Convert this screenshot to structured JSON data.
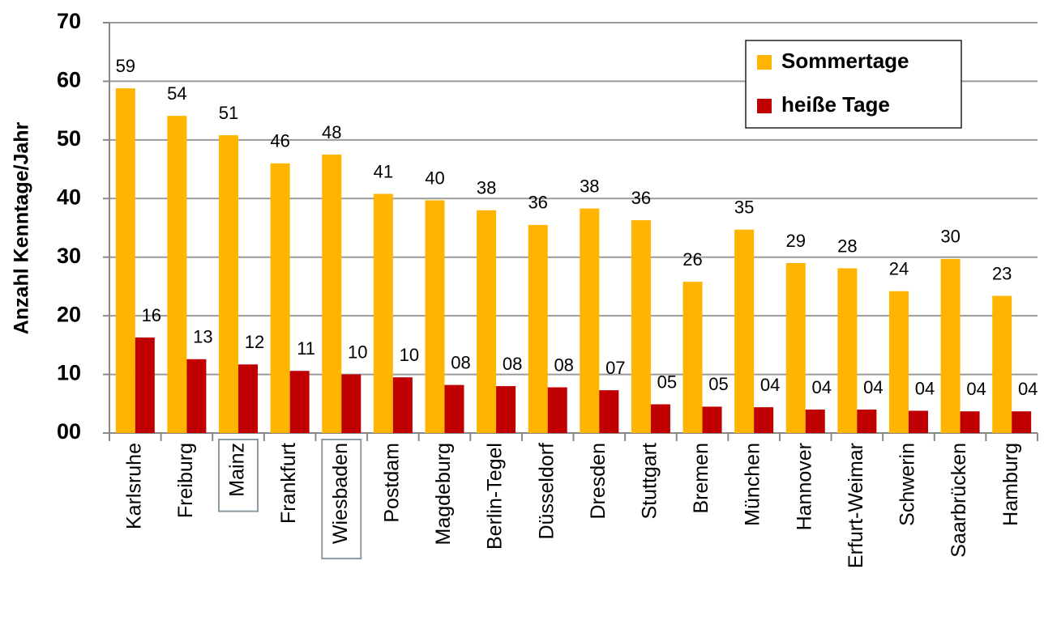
{
  "chart_data": {
    "type": "bar",
    "y_label": "Anzahl Kenntage/Jahr",
    "categories": [
      "Karlsruhe",
      "Freiburg",
      "Mainz",
      "Frankfurt",
      "Wiesbaden",
      "Postdam",
      "Magdeburg",
      "Berlin-Tegel",
      "Düsseldorf",
      "Dresden",
      "Stuttgart",
      "Bremen",
      "München",
      "Hannover",
      "Erfurt-Weimar",
      "Schwerin",
      "Saarbrücken",
      "Hamburg"
    ],
    "series": [
      {
        "name": "Sommertage",
        "color": "#FFB400",
        "values": [
          58.8,
          54.1,
          50.8,
          46,
          47.5,
          40.8,
          39.7,
          38,
          35.5,
          38.3,
          36.3,
          25.8,
          34.7,
          29,
          28.1,
          24.2,
          29.7,
          23.4
        ],
        "value_labels": [
          "59",
          "54",
          "51",
          "46",
          "48",
          "41",
          "40",
          "38",
          "36",
          "38",
          "36",
          "26",
          "35",
          "29",
          "28",
          "24",
          "30",
          "23"
        ]
      },
      {
        "name": "heiße Tage",
        "color": "#C00000",
        "values": [
          16.3,
          12.6,
          11.7,
          10.6,
          10,
          9.5,
          8.2,
          8,
          7.8,
          7.3,
          4.9,
          4.5,
          4.4,
          4,
          4,
          3.8,
          3.7,
          3.7
        ],
        "value_labels": [
          "16",
          "13",
          "12",
          "11",
          "10",
          "10",
          "08",
          "08",
          "08",
          "07",
          "05",
          "05",
          "04",
          "04",
          "04",
          "04",
          "04",
          "04"
        ]
      }
    ],
    "highlighted": [
      2,
      4
    ],
    "ylim": [
      0,
      70
    ],
    "yticks": [
      {
        "value": 0,
        "label": "00"
      },
      10,
      20,
      30,
      40,
      50,
      60,
      70
    ],
    "grid": true,
    "legend": "top-right"
  }
}
